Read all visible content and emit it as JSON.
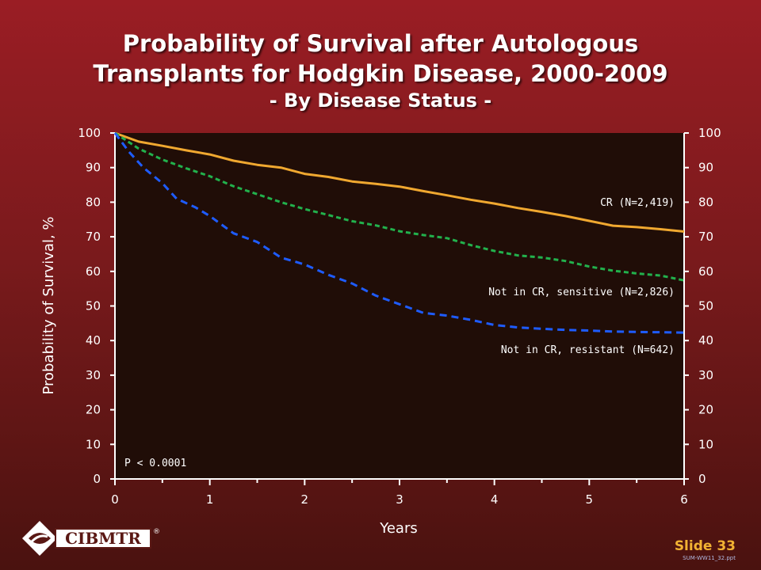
{
  "title": {
    "line1": "Probability of Survival after Autologous",
    "line2": "Transplants for Hodgkin Disease, 2000-2009",
    "subtitle": "- By Disease Status -"
  },
  "footer": {
    "logo_text": "CIBMTR",
    "logo_mark": "®",
    "slide_label": "Slide 33",
    "file_name": "SUM-WW11_32.ppt"
  },
  "colors": {
    "plot_bg": "#200d07",
    "cr": "#f0a830",
    "sensitive": "#22b14c",
    "resistant": "#1e5cff"
  },
  "chart_data": {
    "type": "line",
    "title": "Probability of Survival after Autologous Transplants for Hodgkin Disease, 2000-2009",
    "xlabel": "Years",
    "ylabel": "Probability of Survival, %",
    "xlim": [
      0,
      6
    ],
    "ylim": [
      0,
      100
    ],
    "x_ticks": [
      "0",
      "1",
      "2",
      "3",
      "4",
      "5",
      "6"
    ],
    "y_ticks": [
      "0",
      "10",
      "20",
      "30",
      "40",
      "50",
      "60",
      "70",
      "80",
      "90",
      "100"
    ],
    "annotation": "P < 0.0001",
    "grid": false,
    "series": [
      {
        "name": "CR (N=2,419)",
        "color": "#f0a830",
        "style": "solid",
        "x": [
          0,
          0.25,
          0.5,
          0.75,
          1,
          1.25,
          1.5,
          1.75,
          2,
          2.25,
          2.5,
          2.75,
          3,
          3.25,
          3.5,
          3.75,
          4,
          4.25,
          4.5,
          4.75,
          5,
          5.25,
          5.5,
          5.75,
          6
        ],
        "y": [
          100,
          97.5,
          96.3,
          95,
          93.8,
          92,
          90.8,
          90,
          88.2,
          87.3,
          86,
          85.3,
          84.5,
          83.2,
          82,
          80.7,
          79.6,
          78.3,
          77.2,
          76,
          74.6,
          73.2,
          72.8,
          72.2,
          71.5
        ]
      },
      {
        "name": "Not in CR, sensitive (N=2,826)",
        "color": "#22b14c",
        "style": "dashed",
        "x": [
          0,
          0.25,
          0.5,
          0.75,
          1,
          1.25,
          1.5,
          1.75,
          2,
          2.25,
          2.5,
          2.75,
          3,
          3.25,
          3.5,
          3.75,
          4,
          4.25,
          4.5,
          4.75,
          5,
          5.25,
          5.5,
          5.75,
          6
        ],
        "y": [
          100,
          95.5,
          92.3,
          89.8,
          87.5,
          84.6,
          82.3,
          80,
          78,
          76.3,
          74.5,
          73.3,
          71.6,
          70.5,
          69.6,
          67.6,
          65.9,
          64.6,
          64,
          63,
          61.4,
          60.2,
          59.4,
          58.8,
          57.4
        ]
      },
      {
        "name": "Not in CR, resistant (N=642)",
        "color": "#1e5cff",
        "style": "dashed",
        "x": [
          0,
          0.15,
          0.3,
          0.5,
          0.65,
          0.85,
          1,
          1.25,
          1.5,
          1.75,
          2,
          2.25,
          2.5,
          2.75,
          3,
          3.25,
          3.5,
          3.75,
          4,
          4.25,
          4.5,
          4.75,
          5,
          5.25,
          5.5,
          5.75,
          6
        ],
        "y": [
          100,
          94.5,
          90,
          85.5,
          81,
          78.5,
          76,
          71,
          68.5,
          64,
          62,
          59,
          56.5,
          53,
          50.5,
          48,
          47.2,
          46,
          44.5,
          43.8,
          43.4,
          43.1,
          42.9,
          42.6,
          42.5,
          42.4,
          42.3
        ]
      }
    ]
  }
}
